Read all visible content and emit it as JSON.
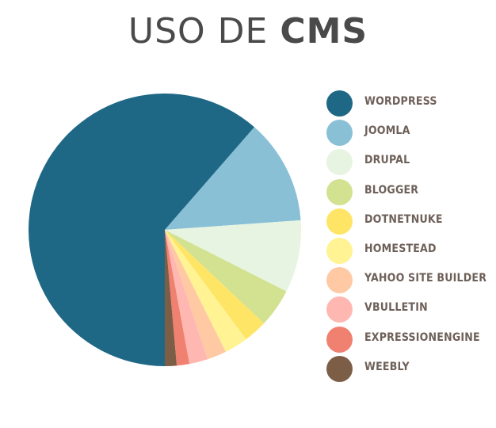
{
  "title": {
    "light": "USO DE",
    "bold": "CMS"
  },
  "chart_data": {
    "type": "pie",
    "title": "USO DE CMS",
    "legend_position": "right",
    "start_angle_deg": 180,
    "direction": "counterclockwise",
    "slices": [
      {
        "label": "WORDPRESS",
        "value": 61.6,
        "color": "#1e6886"
      },
      {
        "label": "JOOMLA",
        "value": 12.5,
        "color": "#89c0d6"
      },
      {
        "label": "DRUPAL",
        "value": 8.6,
        "color": "#e7f4e2"
      },
      {
        "label": "BLOGGER",
        "value": 4.6,
        "color": "#d3e290"
      },
      {
        "label": "DOTNETNUKE",
        "value": 2.8,
        "color": "#ffe566"
      },
      {
        "label": "HOMESTEAD",
        "value": 2.8,
        "color": "#fff394"
      },
      {
        "label": "YAHOO SITE BUILDER",
        "value": 2.3,
        "color": "#ffc9a3"
      },
      {
        "label": "VBULLETIN",
        "value": 2.2,
        "color": "#ffb8b1"
      },
      {
        "label": "EXPRESSIONENGINE",
        "value": 1.5,
        "color": "#f08070"
      },
      {
        "label": "WEEBLY",
        "value": 1.4,
        "color": "#7c5e47"
      }
    ]
  }
}
